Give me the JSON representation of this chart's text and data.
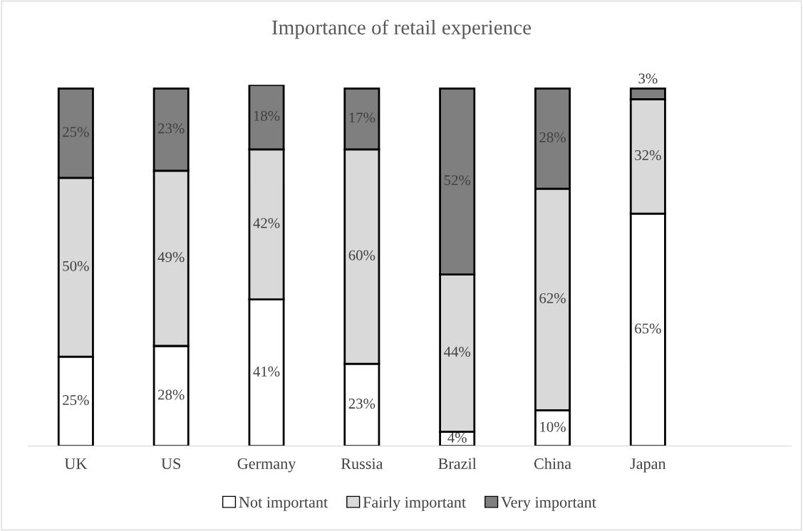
{
  "chart_data": {
    "type": "bar",
    "title": "Importance of retail experience",
    "stacked": true,
    "categories": [
      "UK",
      "US",
      "Germany",
      "Russia",
      "Brazil",
      "China",
      "Japan",
      null
    ],
    "ylim": [
      0,
      101
    ],
    "tick_labels": "x",
    "grid": false,
    "legend": "bottom",
    "series": [
      {
        "name": "Not important",
        "color": "#ffffff",
        "values": [
          25,
          28,
          41,
          23,
          4,
          10,
          65,
          null
        ],
        "value_labels": [
          "25%",
          "28%",
          "41%",
          "23%",
          "4%",
          "10%",
          "65%",
          null
        ]
      },
      {
        "name": "Fairly important",
        "color": "#d9d9d9",
        "values": [
          50,
          49,
          42,
          60,
          44,
          62,
          32,
          null
        ],
        "value_labels": [
          "50%",
          "49%",
          "42%",
          "60%",
          "44%",
          "62%",
          "32%",
          null
        ]
      },
      {
        "name": "Very important",
        "color": "#7f7f7f",
        "values": [
          25,
          23,
          18,
          17,
          52,
          28,
          3,
          null
        ],
        "value_labels": [
          "25%",
          "23%",
          "18%",
          "17%",
          "52%",
          "28%",
          "3%",
          null
        ]
      }
    ]
  }
}
